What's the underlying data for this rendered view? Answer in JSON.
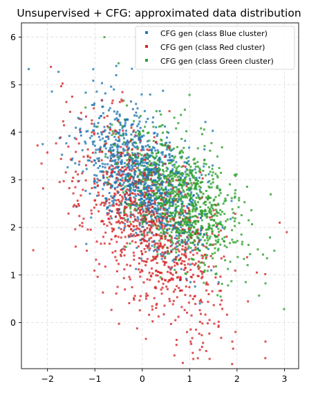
{
  "chart_data": {
    "type": "scatter",
    "title": "Unsupervised + CFG: approximated data distribution",
    "xlabel": "",
    "ylabel": "",
    "xlim": [
      -2.55,
      3.3
    ],
    "ylim": [
      -0.97,
      6.3
    ],
    "xticks": [
      -2,
      -1,
      0,
      1,
      2,
      3
    ],
    "yticks": [
      0,
      1,
      2,
      3,
      4,
      5,
      6
    ],
    "xtick_labels": [
      "−2",
      "−1",
      "0",
      "1",
      "2",
      "3"
    ],
    "ytick_labels": [
      "0",
      "1",
      "2",
      "3",
      "4",
      "5",
      "6"
    ],
    "grid": true,
    "legend_position": "upper right",
    "series": [
      {
        "name": "CFG gen (class Blue cluster)",
        "color": "#1f77b4",
        "distribution": {
          "center": [
            0.0,
            3.0
          ],
          "spread": [
            0.6,
            0.75
          ],
          "correlation": -0.45,
          "count": 1000
        }
      },
      {
        "name": "CFG gen (class Red cluster)",
        "color": "#d62728",
        "distribution": {
          "center": [
            0.1,
            2.1
          ],
          "spread": [
            0.75,
            1.1
          ],
          "correlation": -0.55,
          "count": 1000
        }
      },
      {
        "name": "CFG gen (class Green cluster)",
        "color": "#2ca02c",
        "distribution": {
          "center": [
            0.8,
            2.6
          ],
          "spread": [
            0.65,
            0.7
          ],
          "correlation": -0.5,
          "count": 1000
        }
      }
    ],
    "outliers": [
      {
        "series": 0,
        "x": -2.1,
        "y": 3.75
      },
      {
        "series": 0,
        "x": -0.55,
        "y": 5.2
      },
      {
        "series": 0,
        "x": -0.6,
        "y": 4.9
      },
      {
        "series": 2,
        "x": -0.8,
        "y": 6.0
      },
      {
        "series": 2,
        "x": -0.5,
        "y": 5.45
      },
      {
        "series": 2,
        "x": 0.85,
        "y": 5.35
      },
      {
        "series": 1,
        "x": -2.3,
        "y": 1.52
      },
      {
        "series": 1,
        "x": 3.05,
        "y": 1.9
      },
      {
        "series": 1,
        "x": 2.6,
        "y": -0.4
      },
      {
        "series": 1,
        "x": 1.35,
        "y": -0.6
      },
      {
        "series": 1,
        "x": 2.9,
        "y": 2.1
      }
    ]
  }
}
